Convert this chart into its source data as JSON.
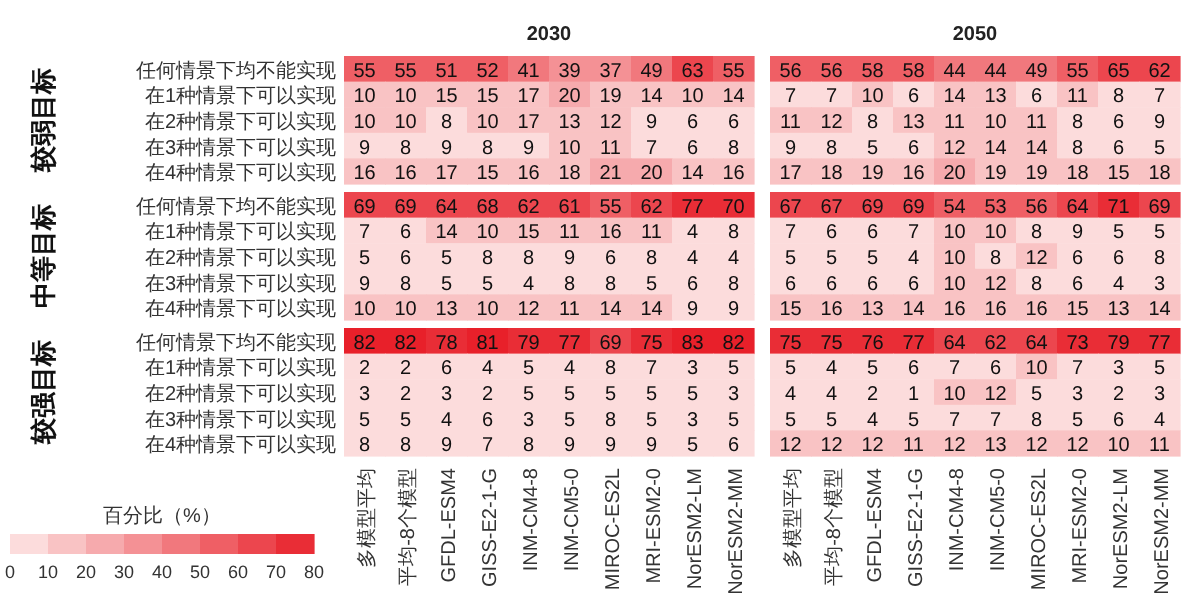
{
  "chart_data": [
    {
      "type": "heatmap",
      "annotations": [
        "2030",
        "2050"
      ],
      "ylabel": "较弱目标",
      "categories": [
        null,
        null,
        null,
        null,
        null,
        null,
        null,
        null,
        null,
        null,
        null,
        null,
        null,
        null,
        null,
        null,
        null,
        null,
        null,
        null
      ],
      "y_categories": [
        "任何情景下均不能实现",
        "在1种情景下可以实现",
        "在2种情景下可以实现",
        "在3种情景下可以实现",
        "在4种情景下可以实现"
      ],
      "data_labels": true,
      "cells": [
        [
          55,
          55,
          51,
          52,
          41,
          39,
          37,
          49,
          63,
          55,
          56,
          56,
          58,
          58,
          44,
          44,
          49,
          55,
          65,
          62
        ],
        [
          10,
          10,
          15,
          15,
          17,
          20,
          19,
          14,
          10,
          14,
          7,
          7,
          10,
          6,
          14,
          13,
          6,
          11,
          8,
          7
        ],
        [
          10,
          10,
          8,
          10,
          17,
          13,
          12,
          9,
          6,
          6,
          11,
          12,
          8,
          13,
          11,
          10,
          11,
          8,
          6,
          9
        ],
        [
          9,
          8,
          9,
          8,
          9,
          10,
          11,
          7,
          6,
          8,
          9,
          8,
          5,
          6,
          12,
          14,
          14,
          8,
          6,
          5
        ],
        [
          16,
          16,
          17,
          15,
          16,
          18,
          21,
          20,
          14,
          16,
          17,
          18,
          19,
          16,
          20,
          19,
          19,
          18,
          15,
          18
        ]
      ]
    },
    {
      "type": "heatmap",
      "ylabel": "中等目标",
      "categories": [
        null,
        null,
        null,
        null,
        null,
        null,
        null,
        null,
        null,
        null,
        null,
        null,
        null,
        null,
        null,
        null,
        null,
        null,
        null,
        null
      ],
      "y_categories": [
        "任何情景下均不能实现",
        "在1种情景下可以实现",
        "在2种情景下可以实现",
        "在3种情景下可以实现",
        "在4种情景下可以实现"
      ],
      "data_labels": true,
      "cells": [
        [
          69,
          69,
          64,
          68,
          62,
          61,
          55,
          62,
          77,
          70,
          67,
          67,
          69,
          69,
          54,
          53,
          56,
          64,
          71,
          69
        ],
        [
          7,
          6,
          14,
          10,
          15,
          11,
          16,
          11,
          4,
          8,
          7,
          6,
          6,
          7,
          10,
          10,
          8,
          9,
          5,
          5
        ],
        [
          5,
          6,
          5,
          8,
          8,
          9,
          6,
          8,
          4,
          4,
          5,
          5,
          5,
          4,
          10,
          8,
          12,
          6,
          6,
          8
        ],
        [
          9,
          8,
          5,
          5,
          4,
          8,
          8,
          5,
          6,
          8,
          6,
          6,
          6,
          6,
          10,
          12,
          8,
          6,
          4,
          3
        ],
        [
          10,
          10,
          13,
          10,
          12,
          11,
          14,
          14,
          9,
          9,
          15,
          16,
          13,
          14,
          16,
          16,
          16,
          15,
          13,
          14
        ]
      ]
    },
    {
      "type": "heatmap",
      "ylabel": "较强目标",
      "categories": [
        "多模型平均",
        "平均-8个模型",
        "GFDL-ESM4",
        "GISS-E2-1-G",
        "INM-CM4-8",
        "INM-CM5-0",
        "MIROC-ES2L",
        "MRI-ESM2-0",
        "NorESM2-LM",
        "NorESM2-MM",
        "多模型平均",
        "平均-8个模型",
        "GFDL-ESM4",
        "GISS-E2-1-G",
        "INM-CM4-8",
        "INM-CM5-0",
        "MIROC-ES2L",
        "MRI-ESM2-0",
        "NorESM2-LM",
        "NorESM2-MM"
      ],
      "y_categories": [
        "任何情景下均不能实现",
        "在1种情景下可以实现",
        "在2种情景下可以实现",
        "在3种情景下可以实现",
        "在4种情景下可以实现"
      ],
      "data_labels": true,
      "clabel": "百分比（%）",
      "clim": [
        0,
        80
      ],
      "cticks": [
        0,
        10,
        20,
        30,
        40,
        50,
        60,
        70,
        80
      ],
      "cells": [
        [
          82,
          82,
          78,
          81,
          79,
          77,
          69,
          75,
          83,
          82,
          75,
          75,
          76,
          77,
          64,
          62,
          64,
          73,
          79,
          77
        ],
        [
          2,
          2,
          6,
          4,
          5,
          4,
          8,
          7,
          3,
          5,
          5,
          4,
          5,
          6,
          7,
          6,
          10,
          7,
          3,
          5
        ],
        [
          3,
          2,
          3,
          2,
          5,
          5,
          5,
          5,
          5,
          3,
          4,
          4,
          2,
          1,
          10,
          12,
          5,
          3,
          2,
          3
        ],
        [
          5,
          5,
          4,
          6,
          3,
          5,
          8,
          5,
          3,
          5,
          5,
          5,
          4,
          5,
          7,
          7,
          8,
          5,
          6,
          4
        ],
        [
          8,
          8,
          9,
          7,
          8,
          9,
          9,
          9,
          5,
          6,
          12,
          12,
          12,
          11,
          12,
          13,
          12,
          12,
          10,
          11
        ]
      ]
    }
  ]
}
